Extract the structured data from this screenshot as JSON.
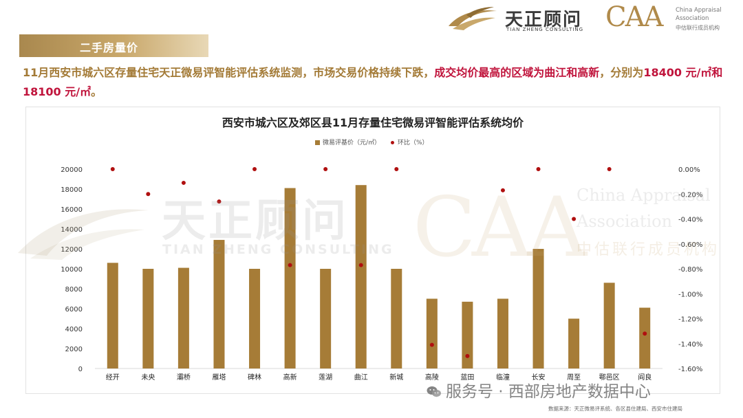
{
  "branding": {
    "tz_logo_cn": "天正顾问",
    "tz_logo_en": "TIAN ZHENG CONSULTING",
    "caa_logo": "CAA",
    "caa_en_line1": "China Appraisal",
    "caa_en_line2": "Association",
    "caa_cn": "中估联行成员机构",
    "brand_gold": "#b08a4a"
  },
  "section": {
    "title": "二手房量价"
  },
  "description": {
    "part1": "11月西安市城六区存量住宅天正微易评智能评估系统监测，市场交易价格持续下跌，",
    "highlight": "成交均价最高的区域为曲江和高新",
    "part2": "，分别为",
    "values": "18400 元/㎡和18100 元/㎡",
    "end": "。"
  },
  "watermarks": {
    "tz_cn": "天正顾问",
    "tz_en": "TIAN ZHENG CONSULTING",
    "caa": "CAA",
    "caa_en1": "China Appraisal",
    "caa_en2": "Association",
    "caa_cn": "中估联行成员机构"
  },
  "footer": {
    "wechat_label": "服务号 · 西部房地产数据中心",
    "source": "数据来源：天正微易评系统、各区县住建局、西安市住建局"
  },
  "chart_data": {
    "type": "bar",
    "title": "西安市城六区及郊区县11月存量住宅微易评智能评估系统均价",
    "categories": [
      "经开",
      "未央",
      "灞桥",
      "雁塔",
      "碑林",
      "高新",
      "莲湖",
      "曲江",
      "新城",
      "高陵",
      "蓝田",
      "临潼",
      "长安",
      "周至",
      "鄠邑区",
      "阎良"
    ],
    "series": [
      {
        "name": "微易评基价（元/㎡）",
        "type": "bar",
        "axis": "left",
        "color": "#a67c37",
        "values": [
          10600,
          10000,
          10100,
          12900,
          10000,
          18100,
          10000,
          18400,
          10000,
          7000,
          6700,
          7000,
          12000,
          5000,
          8600,
          6100
        ]
      },
      {
        "name": "环比（%）",
        "type": "scatter",
        "axis": "right",
        "color": "#b01010",
        "values": [
          0.0,
          -0.2,
          -0.11,
          -0.26,
          0.0,
          -0.77,
          0.0,
          -0.77,
          0.0,
          -1.41,
          -1.5,
          -0.17,
          0.0,
          -0.4,
          0.0,
          -1.32
        ]
      }
    ],
    "left_axis": {
      "min": 0,
      "max": 20000,
      "step": 2000,
      "tick_labels": [
        "0",
        "2000",
        "4000",
        "6000",
        "8000",
        "10000",
        "12000",
        "14000",
        "16000",
        "18000",
        "20000"
      ]
    },
    "right_axis": {
      "min": -1.6,
      "max": 0,
      "step": 0.2,
      "tick_labels": [
        "-1.60%",
        "-1.40%",
        "-1.20%",
        "-1.00%",
        "-0.80%",
        "-0.60%",
        "-0.40%",
        "-0.20%",
        "0.00%"
      ]
    },
    "grid": false,
    "legend_position": "top-center"
  }
}
